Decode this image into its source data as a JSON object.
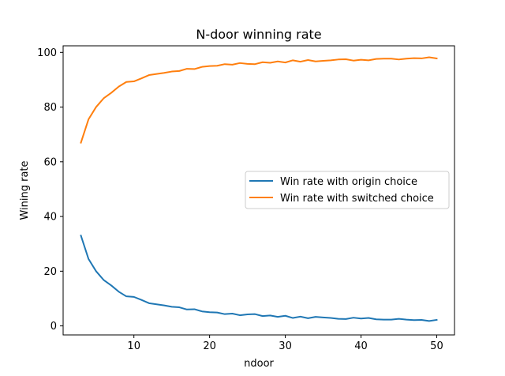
{
  "chart_data": {
    "type": "line",
    "title": "N-door winning rate",
    "xlabel": "ndoor",
    "ylabel": "Wining rate",
    "xlim": [
      0.65,
      52.35
    ],
    "ylim": [
      -3.3,
      102.4
    ],
    "xticks": [
      10,
      20,
      30,
      40,
      50
    ],
    "yticks": [
      0,
      20,
      40,
      60,
      80,
      100
    ],
    "grid": false,
    "legend_position": "center-right",
    "x": [
      3,
      4,
      5,
      6,
      7,
      8,
      9,
      10,
      11,
      12,
      13,
      14,
      15,
      16,
      17,
      18,
      19,
      20,
      21,
      22,
      23,
      24,
      25,
      26,
      27,
      28,
      29,
      30,
      31,
      32,
      33,
      34,
      35,
      36,
      37,
      38,
      39,
      40,
      41,
      42,
      43,
      44,
      45,
      46,
      47,
      48,
      49,
      50
    ],
    "series": [
      {
        "name": "Win rate with origin choice",
        "color": "#1f77b4",
        "values": [
          33.0,
          24.5,
          20.0,
          16.8,
          14.8,
          12.5,
          10.8,
          10.6,
          9.5,
          8.3,
          7.9,
          7.5,
          7.0,
          6.8,
          6.0,
          6.1,
          5.3,
          5.0,
          4.9,
          4.3,
          4.5,
          3.9,
          4.2,
          4.3,
          3.6,
          3.8,
          3.3,
          3.7,
          2.9,
          3.4,
          2.8,
          3.3,
          3.1,
          2.9,
          2.6,
          2.5,
          3.0,
          2.7,
          2.9,
          2.4,
          2.3,
          2.3,
          2.6,
          2.3,
          2.1,
          2.2,
          1.8,
          2.2
        ]
      },
      {
        "name": "Win rate with switched choice",
        "color": "#ff7f0e",
        "values": [
          67.0,
          75.5,
          80.0,
          83.2,
          85.2,
          87.5,
          89.2,
          89.4,
          90.5,
          91.7,
          92.1,
          92.5,
          93.0,
          93.2,
          94.0,
          93.9,
          94.7,
          95.0,
          95.1,
          95.7,
          95.5,
          96.1,
          95.8,
          95.7,
          96.4,
          96.2,
          96.7,
          96.3,
          97.1,
          96.6,
          97.2,
          96.7,
          96.9,
          97.1,
          97.4,
          97.5,
          97.0,
          97.3,
          97.1,
          97.6,
          97.7,
          97.7,
          97.4,
          97.7,
          97.9,
          97.8,
          98.2,
          97.8
        ]
      }
    ]
  }
}
